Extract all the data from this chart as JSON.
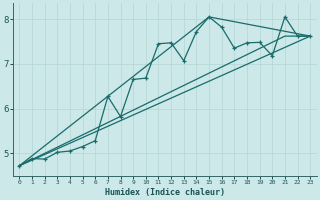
{
  "title": "",
  "xlabel": "Humidex (Indice chaleur)",
  "ylabel": "",
  "bg_color": "#cce8e8",
  "line_color": "#1a6b6b",
  "grid_color": "#b8d8d8",
  "xlim": [
    -0.5,
    23.5
  ],
  "ylim": [
    4.5,
    8.35
  ],
  "xticks": [
    0,
    1,
    2,
    3,
    4,
    5,
    6,
    7,
    8,
    9,
    10,
    11,
    12,
    13,
    14,
    15,
    16,
    17,
    18,
    19,
    20,
    21,
    22,
    23
  ],
  "yticks": [
    5,
    6,
    7,
    8
  ],
  "line1_x": [
    0,
    1,
    2,
    3,
    4,
    5,
    6,
    7,
    8,
    9,
    10,
    11,
    12,
    13,
    14,
    15,
    16,
    17,
    18,
    19,
    20,
    21,
    22,
    23
  ],
  "line1_y": [
    4.72,
    4.88,
    4.87,
    5.02,
    5.05,
    5.15,
    5.28,
    6.27,
    5.82,
    6.65,
    6.68,
    7.45,
    7.47,
    7.07,
    7.72,
    8.05,
    7.82,
    7.35,
    7.47,
    7.48,
    7.18,
    8.05,
    7.62,
    7.62
  ],
  "line2_x": [
    0,
    23
  ],
  "line2_y": [
    4.72,
    7.62
  ],
  "line3_x": [
    0,
    15,
    23
  ],
  "line3_y": [
    4.72,
    8.05,
    7.62
  ],
  "line4_x": [
    0,
    21,
    23
  ],
  "line4_y": [
    4.72,
    7.62,
    7.62
  ]
}
